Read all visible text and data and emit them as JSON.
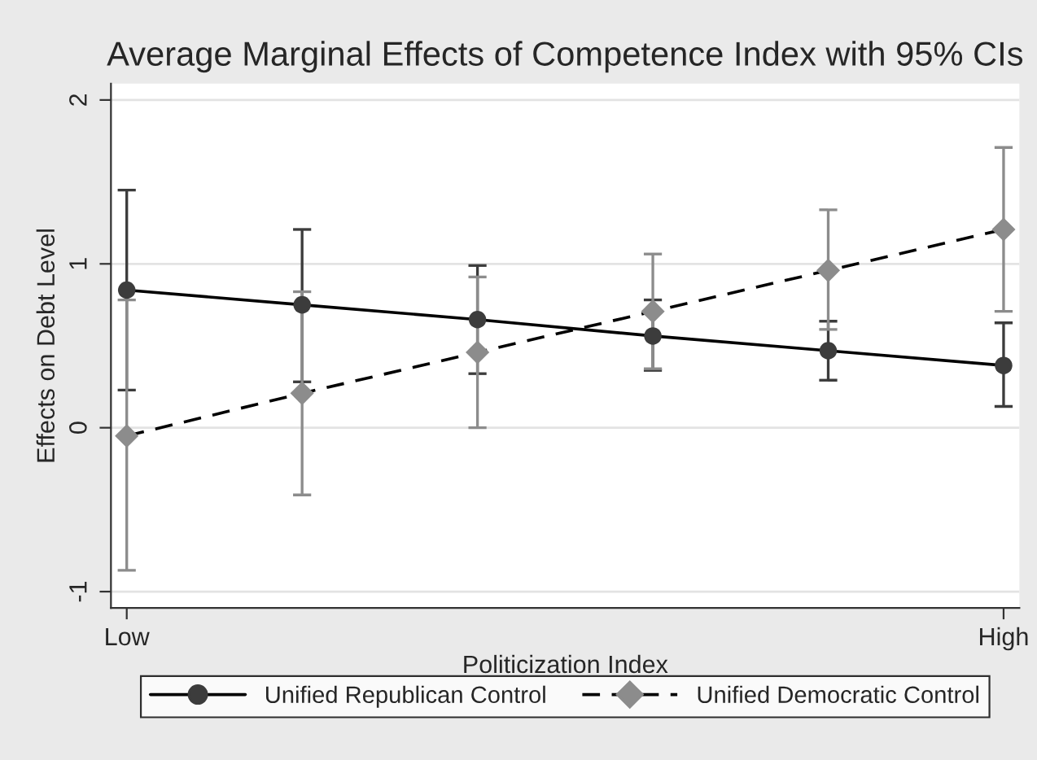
{
  "chart_data": {
    "type": "line",
    "title": "Average Marginal Effects of Competence Index with 95% CIs",
    "xlabel": "Politicization Index",
    "ylabel": "Effects on Debt Level",
    "categories": [
      "Low",
      null,
      null,
      null,
      null,
      "High"
    ],
    "series": [
      {
        "name": "Unified Republican Control",
        "color": "#3c3c3c",
        "marker": "circle",
        "line_style": "solid",
        "values": [
          0.84,
          0.75,
          0.66,
          0.56,
          0.47,
          0.38
        ],
        "errors": [
          [
            0.23,
            1.45
          ],
          [
            0.28,
            1.21
          ],
          [
            0.33,
            0.99
          ],
          [
            0.35,
            0.78
          ],
          [
            0.29,
            0.65
          ],
          [
            0.13,
            0.64
          ]
        ]
      },
      {
        "name": "Unified Democratic Control",
        "color": "#8c8c8c",
        "marker": "diamond",
        "line_style": "dashed",
        "values": [
          -0.05,
          0.21,
          0.46,
          0.71,
          0.96,
          1.21
        ],
        "errors": [
          [
            -0.87,
            0.78
          ],
          [
            -0.41,
            0.83
          ],
          [
            0.0,
            0.92
          ],
          [
            0.36,
            1.06
          ],
          [
            0.6,
            1.33
          ],
          [
            0.71,
            1.71
          ]
        ]
      }
    ],
    "ylim": [
      -1.1,
      2.1
    ],
    "yticks": [
      -1,
      0,
      1,
      2
    ],
    "grid": "y",
    "legend": "bottom"
  }
}
